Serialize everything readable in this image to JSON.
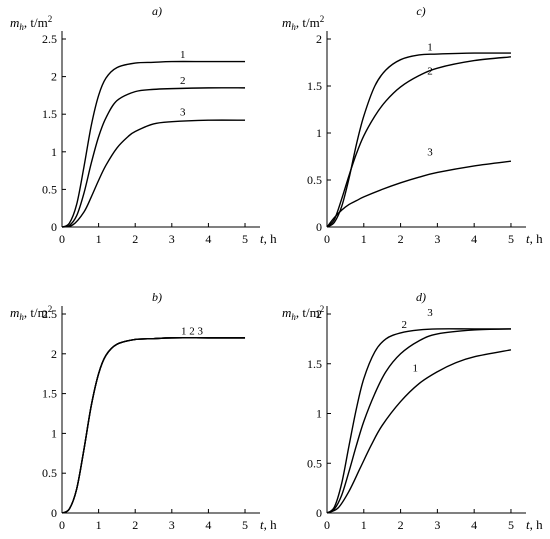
{
  "chart_data": [
    {
      "type": "line",
      "panel_label": "a)",
      "ylabel_var": "m",
      "ylabel_sub": "h",
      "ylabel_unit": ", t/m",
      "ylabel_sup": "2",
      "xlabel_var": "t",
      "xlabel_unit": ", h",
      "xlim": [
        0,
        5.3
      ],
      "ylim": [
        0,
        2.5
      ],
      "xticks": [
        "0",
        "1",
        "2",
        "3",
        "4",
        "5"
      ],
      "yticks": [
        "0",
        "0.5",
        "1",
        "1.5",
        "2",
        "2.5"
      ],
      "series": [
        {
          "name": "1",
          "label_at": [
            3.3,
            2.25
          ],
          "x": [
            0,
            0.2,
            0.4,
            0.6,
            0.8,
            1.0,
            1.2,
            1.5,
            2.0,
            2.5,
            3.0,
            4.0,
            5.0
          ],
          "y": [
            0,
            0.05,
            0.3,
            0.8,
            1.35,
            1.75,
            1.98,
            2.12,
            2.18,
            2.19,
            2.2,
            2.2,
            2.2
          ]
        },
        {
          "name": "2",
          "label_at": [
            3.3,
            1.9
          ],
          "x": [
            0,
            0.2,
            0.4,
            0.6,
            0.8,
            1.0,
            1.2,
            1.5,
            2.0,
            2.5,
            3.0,
            4.0,
            5.0
          ],
          "y": [
            0,
            0.02,
            0.15,
            0.45,
            0.85,
            1.2,
            1.45,
            1.68,
            1.8,
            1.83,
            1.84,
            1.85,
            1.85
          ]
        },
        {
          "name": "3",
          "label_at": [
            3.3,
            1.48
          ],
          "x": [
            0,
            0.3,
            0.6,
            0.8,
            1.0,
            1.2,
            1.5,
            1.8,
            2.0,
            2.5,
            3.0,
            4.0,
            5.0
          ],
          "y": [
            0,
            0.03,
            0.2,
            0.4,
            0.62,
            0.82,
            1.05,
            1.2,
            1.27,
            1.37,
            1.4,
            1.42,
            1.42
          ]
        }
      ]
    },
    {
      "type": "line",
      "panel_label": "c)",
      "ylabel_var": "m",
      "ylabel_sub": "h",
      "ylabel_unit": ", t/m",
      "ylabel_sup": "2",
      "xlabel_var": "t",
      "xlabel_unit": ", h",
      "xlim": [
        0,
        5.3
      ],
      "ylim": [
        0,
        2.0
      ],
      "xticks": [
        "0",
        "1",
        "2",
        "3",
        "4",
        "5"
      ],
      "yticks": [
        "0",
        "0.5",
        "1",
        "1.5",
        "2"
      ],
      "series": [
        {
          "name": "1",
          "label_at": [
            2.8,
            1.88
          ],
          "x": [
            0,
            0.2,
            0.4,
            0.6,
            0.8,
            1.0,
            1.3,
            1.6,
            2.0,
            2.5,
            3.0,
            4.0,
            5.0
          ],
          "y": [
            0,
            0.05,
            0.22,
            0.52,
            0.88,
            1.18,
            1.5,
            1.67,
            1.78,
            1.83,
            1.84,
            1.85,
            1.85
          ]
        },
        {
          "name": "2",
          "label_at": [
            2.8,
            1.62
          ],
          "x": [
            0,
            0.2,
            0.4,
            0.6,
            0.8,
            1.0,
            1.3,
            1.6,
            2.0,
            2.5,
            3.0,
            4.0,
            5.0
          ],
          "y": [
            0,
            0.08,
            0.3,
            0.55,
            0.78,
            0.97,
            1.18,
            1.34,
            1.49,
            1.61,
            1.69,
            1.77,
            1.81
          ]
        },
        {
          "name": "3",
          "label_at": [
            2.8,
            0.76
          ],
          "x": [
            0,
            0.2,
            0.4,
            0.6,
            0.8,
            1.0,
            1.5,
            2.0,
            2.5,
            3.0,
            4.0,
            5.0
          ],
          "y": [
            0,
            0.1,
            0.18,
            0.24,
            0.28,
            0.32,
            0.4,
            0.47,
            0.53,
            0.58,
            0.65,
            0.7
          ]
        }
      ]
    },
    {
      "type": "line",
      "panel_label": "b)",
      "ylabel_var": "m",
      "ylabel_sub": "h",
      "ylabel_unit": ", t/m",
      "ylabel_sup": "2",
      "xlabel_var": "t",
      "xlabel_unit": ", h",
      "xlim": [
        0,
        5.3
      ],
      "ylim": [
        0,
        2.5
      ],
      "xticks": [
        "0",
        "1",
        "2",
        "3",
        "4",
        "5"
      ],
      "yticks": [
        "0",
        "0.5",
        "1",
        "1.5",
        "2",
        "2.5"
      ],
      "curve_labels_inline": "1 2 3",
      "curve_labels_at": [
        3.25,
        2.24
      ],
      "series": [
        {
          "name": "1",
          "x": [
            0,
            0.2,
            0.4,
            0.6,
            0.8,
            1.0,
            1.2,
            1.5,
            2.0,
            2.5,
            3.0,
            4.0,
            5.0
          ],
          "y": [
            0,
            0.05,
            0.3,
            0.8,
            1.35,
            1.75,
            1.98,
            2.12,
            2.18,
            2.19,
            2.2,
            2.2,
            2.2
          ]
        },
        {
          "name": "2",
          "x": [
            0,
            0.2,
            0.4,
            0.6,
            0.8,
            1.0,
            1.2,
            1.5,
            2.0,
            2.5,
            3.0,
            4.0,
            5.0
          ],
          "y": [
            0,
            0.05,
            0.3,
            0.8,
            1.35,
            1.75,
            1.98,
            2.12,
            2.18,
            2.19,
            2.2,
            2.2,
            2.2
          ]
        },
        {
          "name": "3",
          "x": [
            0,
            0.2,
            0.4,
            0.6,
            0.8,
            1.0,
            1.2,
            1.5,
            2.0,
            2.5,
            3.0,
            4.0,
            5.0
          ],
          "y": [
            0,
            0.05,
            0.3,
            0.8,
            1.35,
            1.75,
            1.98,
            2.12,
            2.18,
            2.19,
            2.2,
            2.2,
            2.2
          ]
        }
      ]
    },
    {
      "type": "line",
      "panel_label": "d)",
      "ylabel_var": "m",
      "ylabel_sub": "h",
      "ylabel_unit": ", t/m",
      "ylabel_sup": "2",
      "xlabel_var": "t",
      "xlabel_unit": ", h",
      "xlim": [
        0,
        5.3
      ],
      "ylim": [
        0,
        2.0
      ],
      "xticks": [
        "0",
        "1",
        "2",
        "3",
        "4",
        "5"
      ],
      "yticks": [
        "0",
        "0.5",
        "1",
        "1.5",
        "2"
      ],
      "series": [
        {
          "name": "1",
          "label_at": [
            2.4,
            1.42
          ],
          "x": [
            0,
            0.3,
            0.6,
            0.9,
            1.2,
            1.5,
            2.0,
            2.5,
            3.0,
            3.5,
            4.0,
            5.0
          ],
          "y": [
            0,
            0.05,
            0.22,
            0.45,
            0.68,
            0.88,
            1.12,
            1.3,
            1.42,
            1.51,
            1.57,
            1.64
          ]
        },
        {
          "name": "2",
          "label_at": [
            2.1,
            1.86
          ],
          "x": [
            0,
            0.2,
            0.4,
            0.6,
            0.8,
            1.0,
            1.3,
            1.6,
            2.0,
            2.5,
            3.0,
            4.0,
            5.0
          ],
          "y": [
            0,
            0.04,
            0.18,
            0.42,
            0.68,
            0.92,
            1.2,
            1.42,
            1.6,
            1.73,
            1.8,
            1.84,
            1.85
          ]
        },
        {
          "name": "3",
          "label_at": [
            2.8,
            1.98
          ],
          "x": [
            0,
            0.2,
            0.4,
            0.6,
            0.8,
            1.0,
            1.3,
            1.6,
            2.0,
            2.5,
            3.0,
            4.0,
            5.0
          ],
          "y": [
            0,
            0.06,
            0.3,
            0.68,
            1.05,
            1.35,
            1.62,
            1.75,
            1.81,
            1.84,
            1.85,
            1.85,
            1.85
          ]
        }
      ]
    }
  ]
}
